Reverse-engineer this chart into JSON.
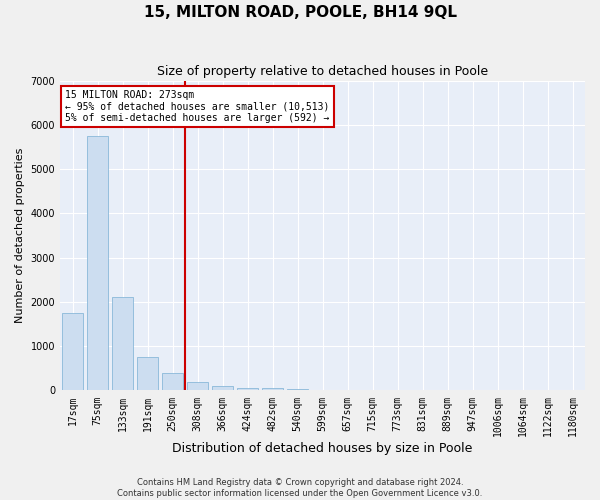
{
  "title": "15, MILTON ROAD, POOLE, BH14 9QL",
  "subtitle": "Size of property relative to detached houses in Poole",
  "xlabel": "Distribution of detached houses by size in Poole",
  "ylabel": "Number of detached properties",
  "categories": [
    "17sqm",
    "75sqm",
    "133sqm",
    "191sqm",
    "250sqm",
    "308sqm",
    "366sqm",
    "424sqm",
    "482sqm",
    "540sqm",
    "599sqm",
    "657sqm",
    "715sqm",
    "773sqm",
    "831sqm",
    "889sqm",
    "947sqm",
    "1006sqm",
    "1064sqm",
    "1122sqm",
    "1180sqm"
  ],
  "values": [
    1750,
    5750,
    2100,
    750,
    400,
    180,
    100,
    60,
    45,
    25,
    12,
    7,
    4,
    3,
    2,
    1,
    1,
    1,
    0,
    0,
    0
  ],
  "bar_color": "#ccddf0",
  "bar_edge_color": "#7aafd4",
  "vline_x": 4.5,
  "vline_color": "#cc0000",
  "annotation_text": "15 MILTON ROAD: 273sqm\n← 95% of detached houses are smaller (10,513)\n5% of semi-detached houses are larger (592) →",
  "annotation_box_color": "#cc0000",
  "footer_line1": "Contains HM Land Registry data © Crown copyright and database right 2024.",
  "footer_line2": "Contains public sector information licensed under the Open Government Licence v3.0.",
  "ylim": [
    0,
    7000
  ],
  "yticks": [
    0,
    1000,
    2000,
    3000,
    4000,
    5000,
    6000,
    7000
  ],
  "bg_color": "#e8eef8",
  "fig_color": "#f0f0f0",
  "grid_color": "#ffffff",
  "title_fontsize": 11,
  "subtitle_fontsize": 9,
  "axis_label_fontsize": 8,
  "tick_fontsize": 7,
  "footer_fontsize": 6
}
